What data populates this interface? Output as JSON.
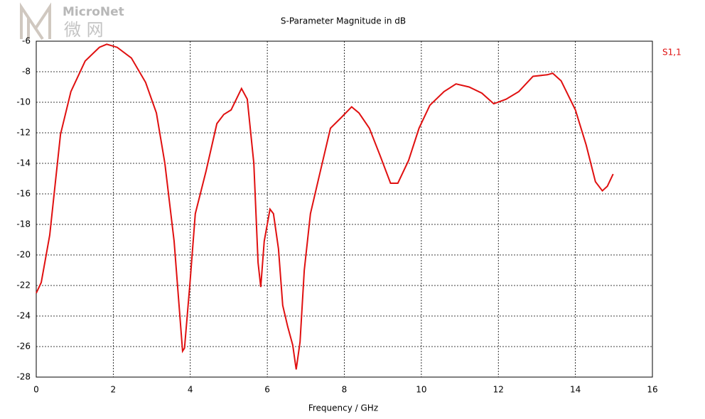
{
  "watermark": {
    "brand": "MicroNet",
    "subtitle": "微 网"
  },
  "chart_data": {
    "type": "line",
    "title": "S-Parameter Magnitude in dB",
    "xlabel": "Frequency / GHz",
    "x": [
      0,
      0.13,
      0.35,
      0.63,
      0.9,
      1.27,
      1.64,
      1.83,
      2.1,
      2.47,
      2.84,
      3.12,
      3.34,
      3.58,
      3.8,
      3.85,
      3.99,
      4.13,
      4.41,
      4.69,
      4.87,
      5.06,
      5.33,
      5.48,
      5.65,
      5.76,
      5.83,
      5.92,
      6.07,
      6.16,
      6.29,
      6.4,
      6.53,
      6.66,
      6.75,
      6.85,
      6.96,
      7.12,
      7.36,
      7.64,
      7.92,
      8.19,
      8.38,
      8.65,
      8.93,
      9.2,
      9.39,
      9.67,
      9.94,
      10.22,
      10.59,
      10.9,
      11.24,
      11.57,
      11.88,
      12.2,
      12.53,
      12.9,
      13.27,
      13.41,
      13.63,
      14.0,
      14.28,
      14.52,
      14.7,
      14.83,
      14.98
    ],
    "series": [
      {
        "name": "S1,1",
        "color": "#e01010",
        "values": [
          -22.5,
          -21.8,
          -18.7,
          -12.1,
          -9.3,
          -7.3,
          -6.4,
          -6.2,
          -6.4,
          -7.1,
          -8.7,
          -10.7,
          -14.0,
          -19.1,
          -26.3,
          -26.1,
          -21.9,
          -17.3,
          -14.5,
          -11.4,
          -10.8,
          -10.5,
          -9.1,
          -9.8,
          -14.0,
          -20.5,
          -22.1,
          -19.1,
          -17.0,
          -17.3,
          -19.6,
          -23.3,
          -24.7,
          -25.9,
          -27.5,
          -25.7,
          -21.0,
          -17.3,
          -14.7,
          -11.7,
          -11.0,
          -10.3,
          -10.7,
          -11.7,
          -13.5,
          -15.3,
          -15.3,
          -13.8,
          -11.7,
          -10.2,
          -9.3,
          -8.8,
          -9.0,
          -9.4,
          -10.1,
          -9.8,
          -9.3,
          -8.3,
          -8.2,
          -8.1,
          -8.6,
          -10.5,
          -12.8,
          -15.2,
          -15.8,
          -15.5,
          -14.7
        ]
      }
    ],
    "xlim": [
      0,
      16
    ],
    "xticks": [
      0,
      2,
      4,
      6,
      8,
      10,
      12,
      14,
      16
    ],
    "ylim": [
      -28,
      -6
    ],
    "yticks": [
      -28,
      -26,
      -24,
      -22,
      -20,
      -18,
      -16,
      -14,
      -12,
      -10,
      -8,
      -6
    ],
    "grid": true,
    "legend": "top-right"
  }
}
